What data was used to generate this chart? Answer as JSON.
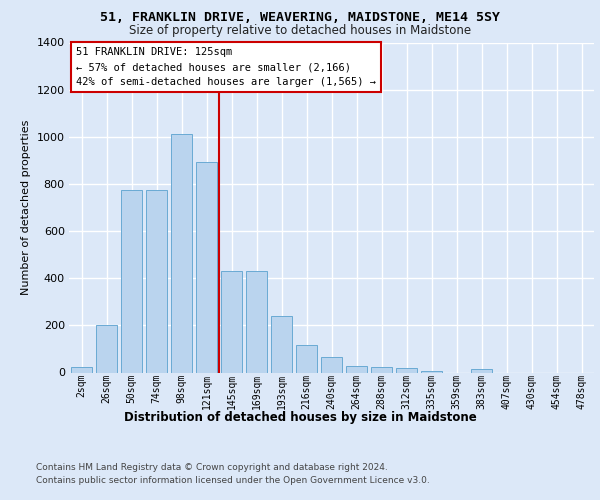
{
  "title1": "51, FRANKLIN DRIVE, WEAVERING, MAIDSTONE, ME14 5SY",
  "title2": "Size of property relative to detached houses in Maidstone",
  "xlabel": "Distribution of detached houses by size in Maidstone",
  "ylabel": "Number of detached properties",
  "categories": [
    "2sqm",
    "26sqm",
    "50sqm",
    "74sqm",
    "98sqm",
    "121sqm",
    "145sqm",
    "169sqm",
    "193sqm",
    "216sqm",
    "240sqm",
    "264sqm",
    "288sqm",
    "312sqm",
    "335sqm",
    "359sqm",
    "383sqm",
    "407sqm",
    "430sqm",
    "454sqm",
    "478sqm"
  ],
  "values": [
    25,
    200,
    775,
    775,
    1010,
    895,
    430,
    430,
    240,
    115,
    65,
    28,
    25,
    18,
    8,
    0,
    13,
    0,
    0,
    0,
    0
  ],
  "bar_color": "#bad4ee",
  "bar_edge_color": "#6aaad4",
  "vline_color": "#cc0000",
  "vline_x": 5.5,
  "annotation_line1": "51 FRANKLIN DRIVE: 125sqm",
  "annotation_line2": "← 57% of detached houses are smaller (2,166)",
  "annotation_line3": "42% of semi-detached houses are larger (1,565) →",
  "bg_color": "#dce8f8",
  "grid_color": "#ffffff",
  "ylim": [
    0,
    1400
  ],
  "yticks": [
    0,
    200,
    400,
    600,
    800,
    1000,
    1200,
    1400
  ],
  "footnote1": "Contains HM Land Registry data © Crown copyright and database right 2024.",
  "footnote2": "Contains public sector information licensed under the Open Government Licence v3.0."
}
